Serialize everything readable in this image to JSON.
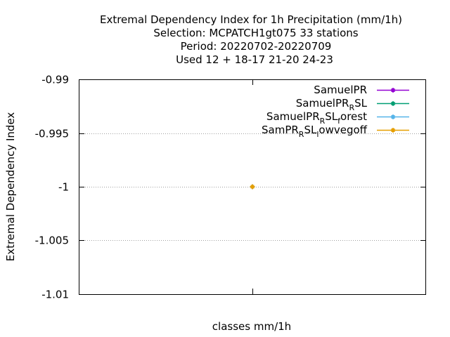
{
  "title_lines": [
    "Extremal Dependency Index  for 1h Precipitation (mm/1h)",
    "Selection: MCPATCH1gt075     33 stations",
    "Period: 20220702-20220709",
    "Used  12 + 18-17 21-20 24-23"
  ],
  "chart_data": {
    "type": "line",
    "title": "Extremal Dependency Index  for 1h Precipitation (mm/1h)",
    "xlabel": "classes mm/1h",
    "ylabel": "Extremal Dependency Index",
    "ylim": [
      -1.01,
      -0.99
    ],
    "yticks": [
      {
        "value": -0.99,
        "label": "-0.99"
      },
      {
        "value": -0.995,
        "label": "-0.995"
      },
      {
        "value": -1,
        "label": "-1"
      },
      {
        "value": -1.005,
        "label": "-1.005"
      },
      {
        "value": -1.01,
        "label": "-1.01"
      }
    ],
    "xlim": [
      0,
      2
    ],
    "xticks": [
      1
    ],
    "grid": true,
    "legend_position": "top-right",
    "series": [
      {
        "name": "SamuelPR",
        "name_main": "SamuelPR",
        "name_sub": "",
        "name_rest": "",
        "name_sub2": "",
        "name_rest2": "",
        "color": "#9400d3",
        "x": [
          1
        ],
        "y": [
          -1
        ]
      },
      {
        "name": "SamuelPR_RSL",
        "name_main": "SamuelPR",
        "name_sub": "R",
        "name_rest": "SL",
        "name_sub2": "",
        "name_rest2": "",
        "color": "#009e73",
        "x": [
          1
        ],
        "y": [
          -1
        ]
      },
      {
        "name": "SamuelPR_RSL_forest",
        "name_main": "SamuelPR",
        "name_sub": "R",
        "name_rest": "SL",
        "name_sub2": "f",
        "name_rest2": "orest",
        "color": "#56b4e9",
        "x": [
          1
        ],
        "y": [
          -1
        ]
      },
      {
        "name": "SamPR_RSL_lowvegoff",
        "name_main": "SamPR",
        "name_sub": "R",
        "name_rest": "SL",
        "name_sub2": "l",
        "name_rest2": "owvegoff",
        "color": "#e69f00",
        "x": [
          1
        ],
        "y": [
          -1
        ]
      }
    ]
  }
}
